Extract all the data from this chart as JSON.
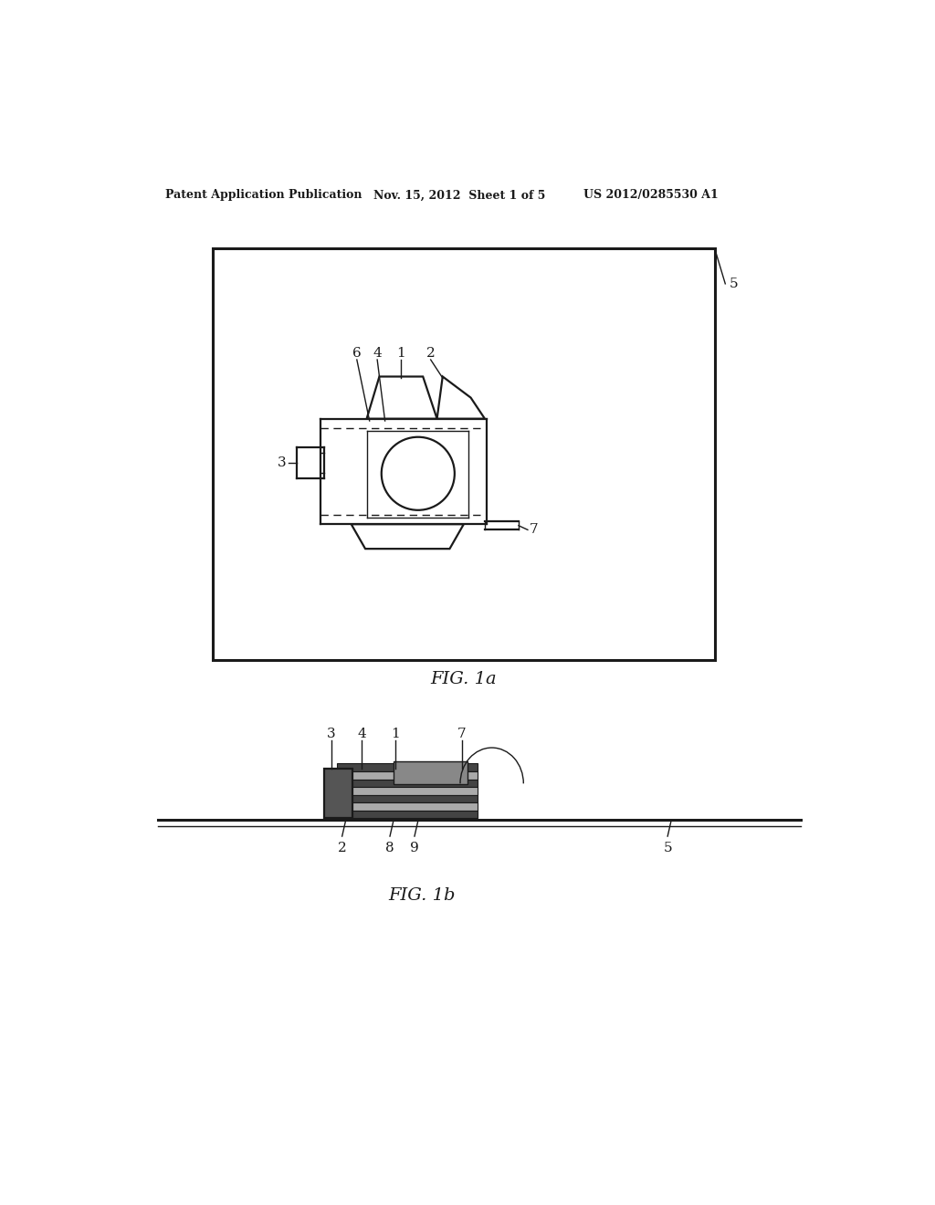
{
  "bg_color": "#ffffff",
  "line_color": "#1a1a1a",
  "header_left": "Patent Application Publication",
  "header_mid": "Nov. 15, 2012  Sheet 1 of 5",
  "header_right": "US 2012/0285530 A1",
  "fig1a_label": "FIG. 1a",
  "fig1b_label": "FIG. 1b"
}
